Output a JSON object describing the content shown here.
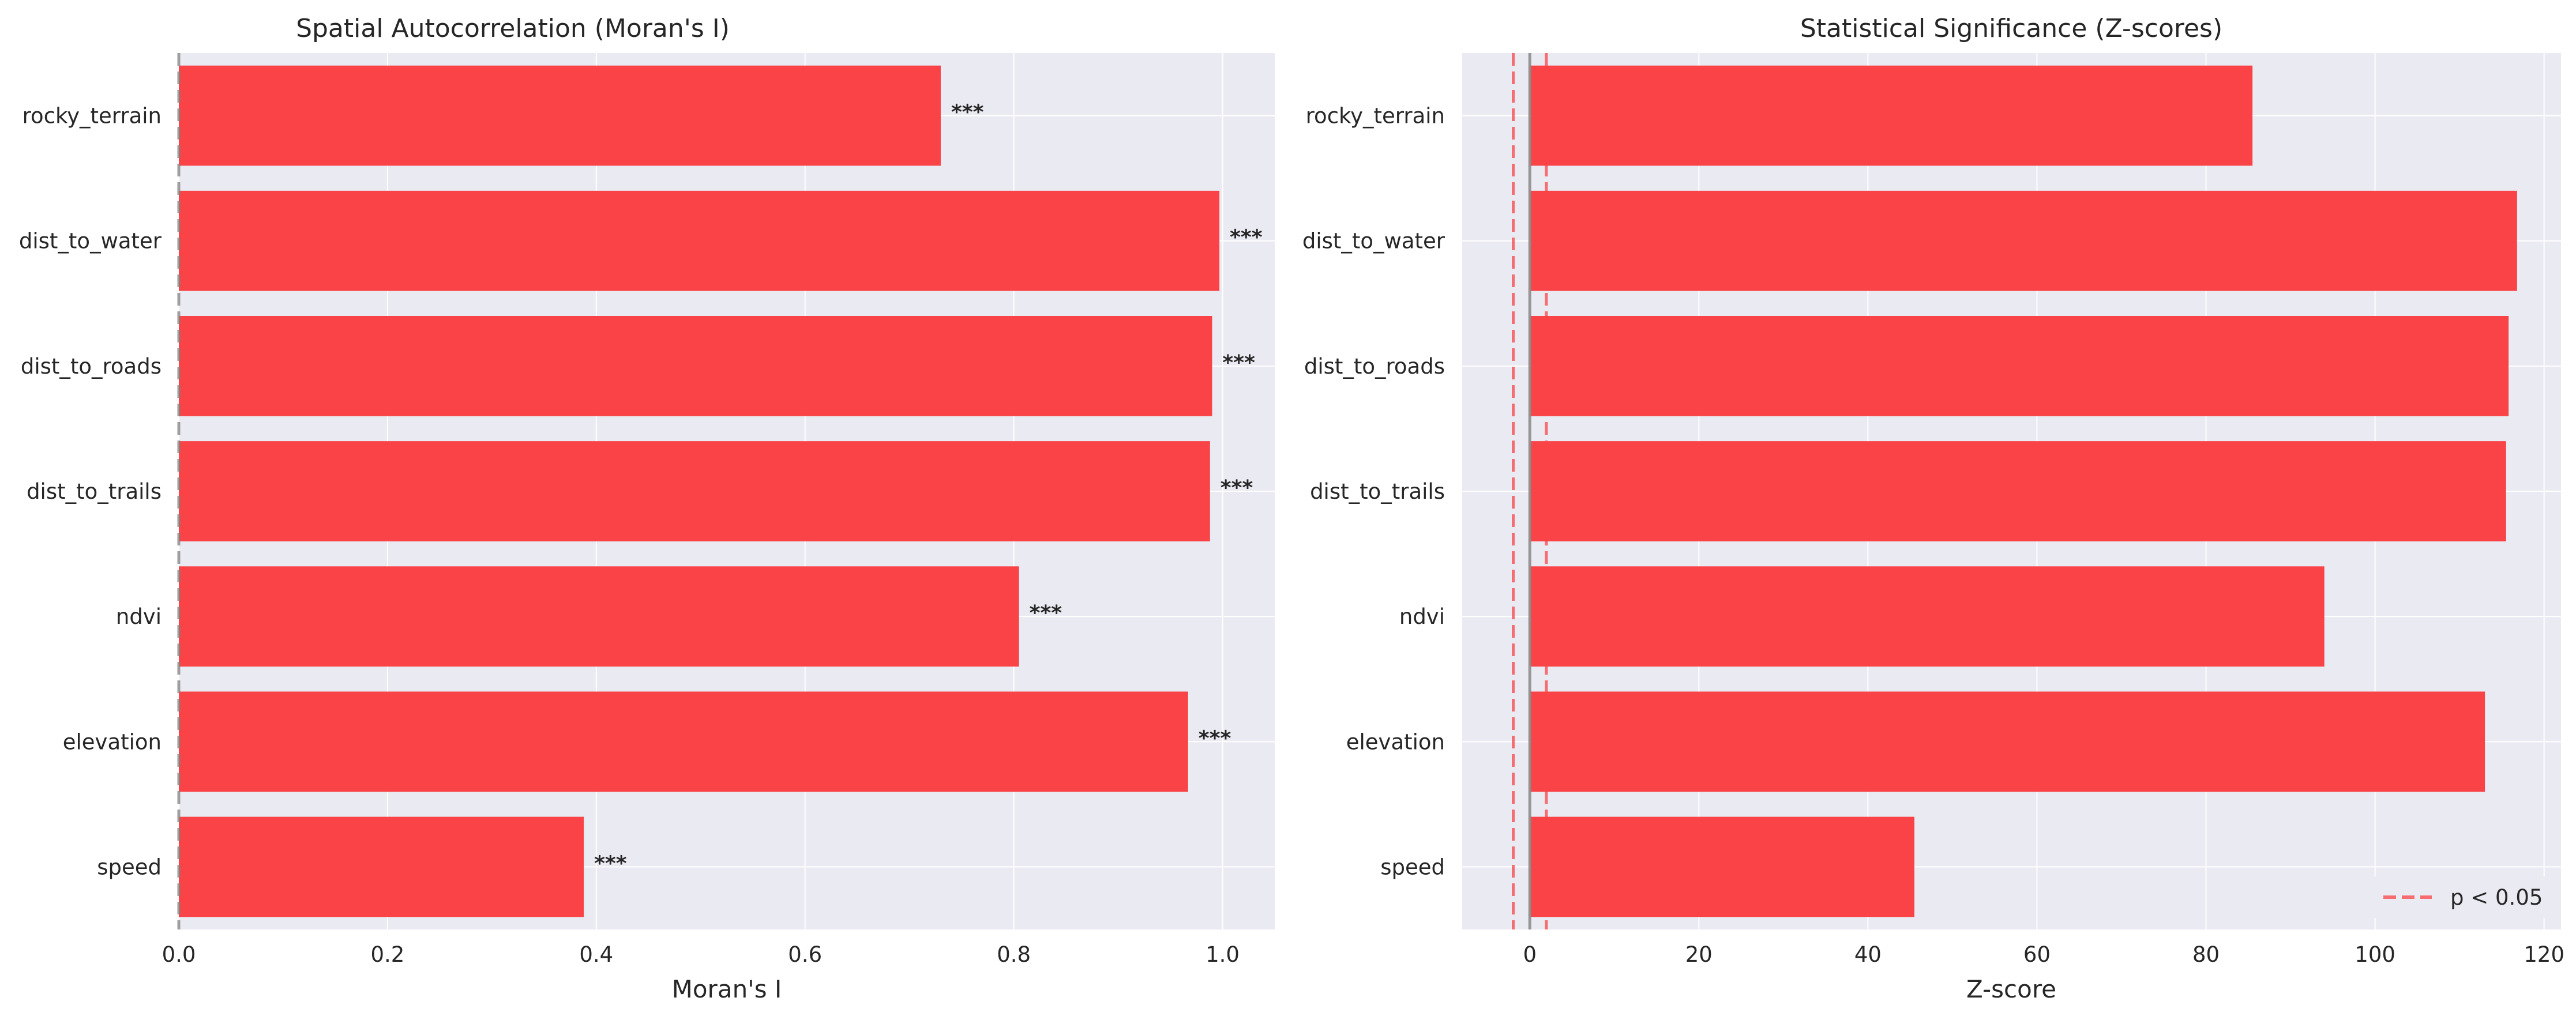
{
  "chart_data": [
    {
      "type": "bar",
      "orientation": "horizontal",
      "title": "Spatial Autocorrelation (Moran's I)",
      "xlabel": "Moran's I",
      "ylabel": "",
      "categories": [
        "rocky_terrain",
        "dist_to_water",
        "dist_to_roads",
        "dist_to_trails",
        "ndvi",
        "elevation",
        "speed"
      ],
      "values": [
        0.73,
        0.997,
        0.99,
        0.988,
        0.805,
        0.967,
        0.388
      ],
      "annotations": [
        "***",
        "***",
        "***",
        "***",
        "***",
        "***",
        "***"
      ],
      "xlim": [
        0,
        1.05
      ],
      "xticks": [
        "0.0",
        "0.2",
        "0.4",
        "0.6",
        "0.8",
        "1.0"
      ],
      "reference_lines": [
        {
          "x": 0,
          "style": "dashed",
          "color": "#808080"
        }
      ],
      "bar_color": "#f94346",
      "grid": true
    },
    {
      "type": "bar",
      "orientation": "horizontal",
      "title": "Statistical Significance (Z-scores)",
      "xlabel": "Z-score",
      "ylabel": "",
      "categories": [
        "rocky_terrain",
        "dist_to_water",
        "dist_to_roads",
        "dist_to_trails",
        "ndvi",
        "elevation",
        "speed"
      ],
      "values": [
        85.5,
        116.8,
        115.8,
        115.5,
        94,
        113,
        45.5
      ],
      "xlim": [
        -8,
        122
      ],
      "xticks": [
        "0",
        "20",
        "40",
        "60",
        "80",
        "100",
        "120"
      ],
      "reference_lines": [
        {
          "x": 0,
          "style": "solid",
          "color": "#8c8c8c"
        },
        {
          "x": -1.96,
          "style": "dashed",
          "color": "#f94346"
        },
        {
          "x": 1.96,
          "style": "dashed",
          "color": "#f94346"
        }
      ],
      "legend": {
        "position": "lower-right",
        "entries": [
          "p < 0.05"
        ]
      },
      "bar_color": "#f94346",
      "grid": true
    }
  ]
}
